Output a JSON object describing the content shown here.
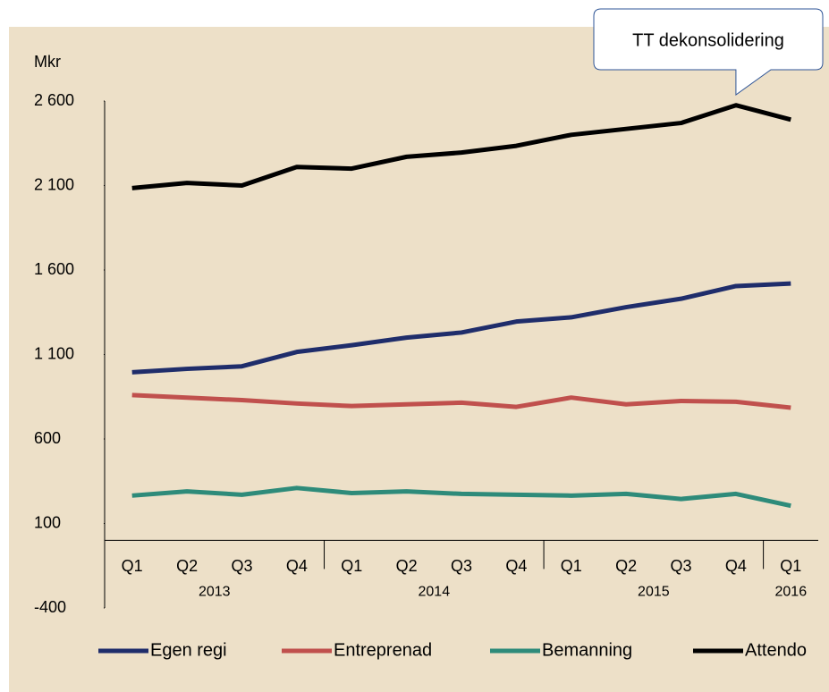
{
  "chart_data": {
    "type": "line",
    "y_axis_label": "Mkr",
    "categories": [
      "Q1",
      "Q2",
      "Q3",
      "Q4",
      "Q1",
      "Q2",
      "Q3",
      "Q4",
      "Q1",
      "Q2",
      "Q3",
      "Q4",
      "Q1"
    ],
    "groups": [
      {
        "label": "2013",
        "count": 4
      },
      {
        "label": "2014",
        "count": 4
      },
      {
        "label": "2015",
        "count": 4
      },
      {
        "label": "2016",
        "count": 1
      }
    ],
    "ylim": [
      -400,
      2600
    ],
    "yticks": [
      {
        "value": -400,
        "label": "-400"
      },
      100,
      600,
      {
        "value": 1100,
        "label": "1 100"
      },
      {
        "value": 1600,
        "label": "1 600"
      },
      {
        "value": 2100,
        "label": "2 100"
      },
      {
        "value": 2600,
        "label": "2 600"
      }
    ],
    "annotation": {
      "text": "TT dekonsolidering",
      "index": 11
    },
    "series": [
      {
        "name": "Egen regi",
        "color": "#1f2d6b",
        "values": [
          995,
          1015,
          1030,
          1115,
          1155,
          1200,
          1230,
          1295,
          1320,
          1380,
          1430,
          1505,
          1520
        ]
      },
      {
        "name": "Entreprenad",
        "color": "#c0504d",
        "values": [
          860,
          845,
          830,
          810,
          795,
          805,
          815,
          790,
          845,
          805,
          825,
          820,
          785
        ]
      },
      {
        "name": "Bemanning",
        "color": "#2e8b7a",
        "values": [
          265,
          290,
          270,
          310,
          280,
          290,
          275,
          270,
          265,
          275,
          245,
          275,
          205
        ]
      },
      {
        "name": "Attendo",
        "color": "#000000",
        "values": [
          2085,
          2115,
          2100,
          2210,
          2200,
          2270,
          2295,
          2335,
          2400,
          2435,
          2470,
          2575,
          2490
        ]
      }
    ]
  }
}
